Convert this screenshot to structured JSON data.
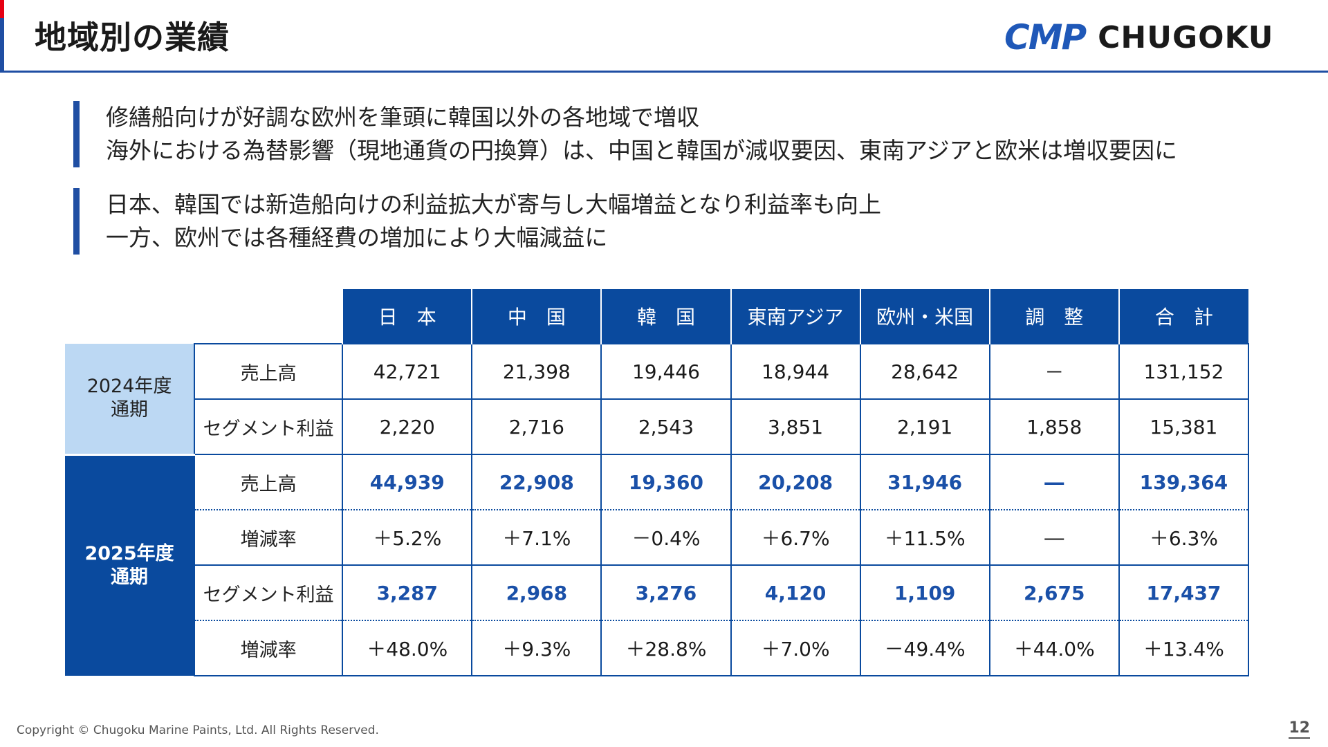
{
  "header": {
    "title": "地域別の業績",
    "logo_mark": "CMP",
    "logo_name": "CHUGOKU"
  },
  "bullets": [
    {
      "lines": [
        "修繕船向けが好調な欧州を筆頭に韓国以外の各地域で増収",
        "海外における為替影響（現地通貨の円換算）は、中国と韓国が減収要因、東南アジアと欧米は増収要因に"
      ]
    },
    {
      "lines": [
        "日本、韓国では新造船向けの利益拡大が寄与し大幅増益となり利益率も向上",
        "一方、欧州では各種経費の増加により大幅減益に"
      ]
    }
  ],
  "table": {
    "columns": [
      "日　本",
      "中　国",
      "韓　国",
      "東南アジア",
      "欧州・米国",
      "調　整",
      "合　計"
    ],
    "period_2024": "2024年度\n通期",
    "period_2025": "2025年度\n通期",
    "rows_2024": [
      {
        "label": "売上高",
        "values": [
          "42,721",
          "21,398",
          "19,446",
          "18,944",
          "28,642",
          "－",
          "131,152"
        ]
      },
      {
        "label": "セグメント利益",
        "values": [
          "2,220",
          "2,716",
          "2,543",
          "3,851",
          "2,191",
          "1,858",
          "15,381"
        ]
      }
    ],
    "rows_2025": [
      {
        "label": "売上高",
        "values": [
          "44,939",
          "22,908",
          "19,360",
          "20,208",
          "31,946",
          "―",
          "139,364"
        ]
      },
      {
        "label": "増減率",
        "values": [
          "＋5.2%",
          "＋7.1%",
          "－0.4%",
          "＋6.7%",
          "＋11.5%",
          "―",
          "＋6.3%"
        ]
      },
      {
        "label": "セグメント利益",
        "values": [
          "3,287",
          "2,968",
          "3,276",
          "4,120",
          "1,109",
          "2,675",
          "17,437"
        ]
      },
      {
        "label": "増減率",
        "values": [
          "＋48.0%",
          "＋9.3%",
          "＋28.8%",
          "＋7.0%",
          "－49.4%",
          "＋44.0%",
          "＋13.4%"
        ]
      }
    ]
  },
  "footer": {
    "copyright": "Copyright © Chugoku Marine Paints, Ltd. All Rights Reserved.",
    "page_number": "12"
  },
  "colors": {
    "brand_blue": "#0a4a9e",
    "accent_red": "#e60012",
    "light_blue": "#bcd8f3",
    "value_blue": "#1a50a8"
  }
}
